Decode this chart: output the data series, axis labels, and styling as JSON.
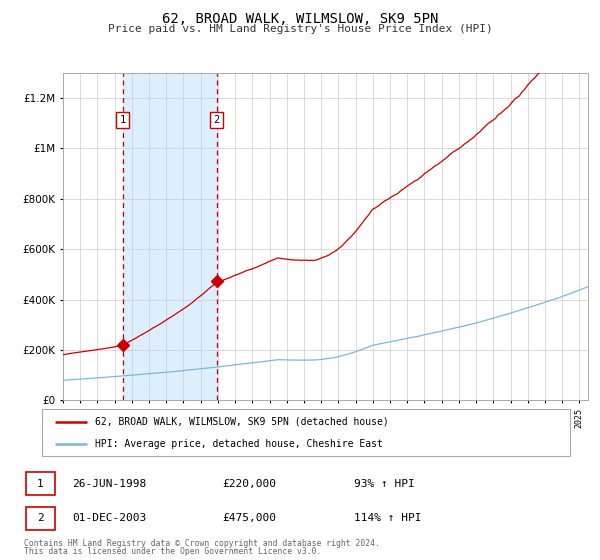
{
  "title": "62, BROAD WALK, WILMSLOW, SK9 5PN",
  "subtitle": "Price paid vs. HM Land Registry's House Price Index (HPI)",
  "sale1_price": 220000,
  "sale2_price": 475000,
  "legend_line1": "62, BROAD WALK, WILMSLOW, SK9 5PN (detached house)",
  "legend_line2": "HPI: Average price, detached house, Cheshire East",
  "table1_num": "1",
  "table1_date": "26-JUN-1998",
  "table1_price": "£220,000",
  "table1_hpi": "93% ↑ HPI",
  "table2_num": "2",
  "table2_date": "01-DEC-2003",
  "table2_price": "£475,000",
  "table2_hpi": "114% ↑ HPI",
  "footer1": "Contains HM Land Registry data © Crown copyright and database right 2024.",
  "footer2": "This data is licensed under the Open Government Licence v3.0.",
  "hpi_line_color": "#7ab8d8",
  "price_line_color": "#cc0000",
  "shade_color": "#ddeeff",
  "vline_color": "#cc0000",
  "ylim_max": 1300000,
  "ylim_min": 0,
  "xlim_start": 1995.0,
  "xlim_end": 2025.5,
  "sale1_year": 1998.46,
  "sale2_year": 2003.92
}
